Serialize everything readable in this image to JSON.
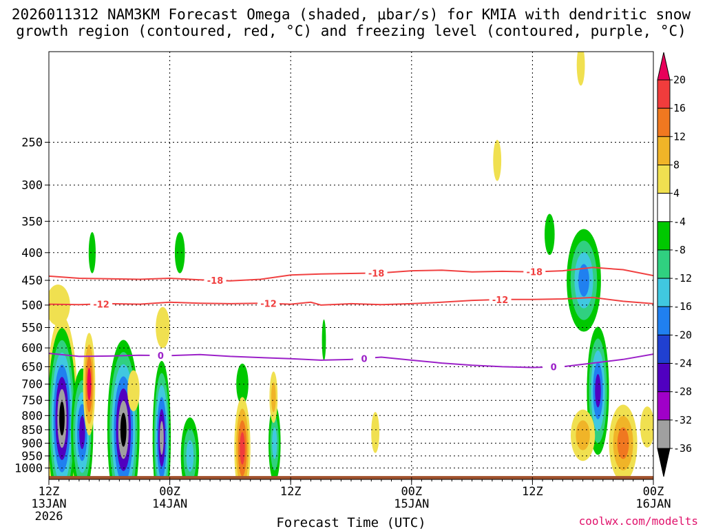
{
  "chart_data": {
    "type": "heatmap",
    "title_line1": "2026011312 NAM3KM Forecast Omega (shaded, μbar/s) for KMIA with dendritic snow",
    "title_line2": "growth region (contoured, red, °C) and freezing level (contoured, purple, °C)",
    "xlabel": "Forecast Time (UTC)",
    "credit": "coolwx.com/modelts",
    "x_range_hours": [
      0,
      60
    ],
    "y_range_hpa": [
      1050,
      170
    ],
    "y_ticks": [
      250,
      300,
      350,
      400,
      450,
      500,
      550,
      600,
      650,
      700,
      750,
      800,
      850,
      900,
      950,
      1000
    ],
    "x_ticks": [
      {
        "hour": 0,
        "line1": "12Z",
        "line2": "13JAN",
        "line3": "2026"
      },
      {
        "hour": 12,
        "line1": "00Z",
        "line2": "14JAN",
        "line3": ""
      },
      {
        "hour": 24,
        "line1": "12Z",
        "line2": "",
        "line3": ""
      },
      {
        "hour": 36,
        "line1": "00Z",
        "line2": "15JAN",
        "line3": ""
      },
      {
        "hour": 48,
        "line1": "12Z",
        "line2": "",
        "line3": ""
      },
      {
        "hour": 60,
        "line1": "00Z",
        "line2": "16JAN",
        "line3": ""
      }
    ],
    "colorbar": {
      "labels": [
        "20",
        "16",
        "12",
        "8",
        "4",
        "-4",
        "-8",
        "-12",
        "-16",
        "-20",
        "-24",
        "-28",
        "-32",
        "-36"
      ],
      "colors": [
        "#e8005a",
        "#f03c3c",
        "#f07820",
        "#f0b428",
        "#f0e050",
        "#ffffff",
        "#00c800",
        "#30d080",
        "#40c8e0",
        "#2080f0",
        "#2040d0",
        "#5000c0",
        "#a000c8",
        "#a0a0a0",
        "#000000"
      ]
    },
    "isotherms": [
      {
        "name": "-18",
        "color": "#f04040",
        "points": [
          [
            0,
            442
          ],
          [
            3,
            446
          ],
          [
            6,
            447
          ],
          [
            9,
            448
          ],
          [
            12,
            446
          ],
          [
            15,
            449
          ],
          [
            18,
            451
          ],
          [
            21,
            448
          ],
          [
            24,
            440
          ],
          [
            27,
            438
          ],
          [
            30,
            437
          ],
          [
            33,
            436
          ],
          [
            36,
            432
          ],
          [
            39,
            431
          ],
          [
            42,
            434
          ],
          [
            45,
            433
          ],
          [
            48,
            434
          ],
          [
            51,
            432
          ],
          [
            54,
            426
          ],
          [
            57,
            430
          ],
          [
            60,
            441
          ]
        ],
        "labels": [
          {
            "hour": 16.5,
            "text": "-18"
          },
          {
            "hour": 32.5,
            "text": "-18"
          },
          {
            "hour": 48.2,
            "text": "-18"
          }
        ]
      },
      {
        "name": "-12",
        "color": "#f04040",
        "points": [
          [
            0,
            498
          ],
          [
            3,
            499
          ],
          [
            6,
            497
          ],
          [
            9,
            498
          ],
          [
            12,
            494
          ],
          [
            15,
            496
          ],
          [
            18,
            497
          ],
          [
            21,
            496
          ],
          [
            24,
            498
          ],
          [
            26,
            494
          ],
          [
            27,
            500
          ],
          [
            30,
            497
          ],
          [
            33,
            499
          ],
          [
            36,
            497
          ],
          [
            39,
            494
          ],
          [
            42,
            490
          ],
          [
            45,
            488
          ],
          [
            48,
            488
          ],
          [
            51,
            487
          ],
          [
            54,
            484
          ],
          [
            57,
            492
          ],
          [
            60,
            497
          ]
        ],
        "labels": [
          {
            "hour": 5.2,
            "text": "-12"
          },
          {
            "hour": 21.8,
            "text": "-12"
          },
          {
            "hour": 44.8,
            "text": "-12"
          }
        ]
      },
      {
        "name": "0",
        "color": "#9b20c8",
        "points": [
          [
            0,
            614
          ],
          [
            3,
            622
          ],
          [
            6,
            621
          ],
          [
            9,
            619
          ],
          [
            12,
            620
          ],
          [
            15,
            617
          ],
          [
            18,
            622
          ],
          [
            21,
            625
          ],
          [
            24,
            628
          ],
          [
            27,
            632
          ],
          [
            30,
            630
          ],
          [
            33,
            624
          ],
          [
            36,
            632
          ],
          [
            39,
            640
          ],
          [
            42,
            646
          ],
          [
            45,
            650
          ],
          [
            48,
            652
          ],
          [
            51,
            650
          ],
          [
            54,
            640
          ],
          [
            57,
            630
          ],
          [
            60,
            616
          ]
        ],
        "labels": [
          {
            "hour": 11.1,
            "text": "0"
          },
          {
            "hour": 31.3,
            "text": "0"
          },
          {
            "hour": 50.1,
            "text": "0"
          }
        ]
      }
    ],
    "omega_blobs": [
      {
        "hour": 1.3,
        "hpa": 810,
        "w": 1.6,
        "levels": [
          "#f0e050",
          "#00c800",
          "#30d080",
          "#40c8e0",
          "#2080f0",
          "#5000c0",
          "#a0a0a0",
          "#000000"
        ]
      },
      {
        "hour": 0.9,
        "hpa": 500,
        "w": 1.2,
        "levels": [
          "#f0e050"
        ]
      },
      {
        "hour": 3.3,
        "hpa": 860,
        "w": 1.1,
        "levels": [
          "#00c800",
          "#30d080",
          "#40c8e0",
          "#2080f0",
          "#5000c0"
        ]
      },
      {
        "hour": 4.0,
        "hpa": 700,
        "w": 0.6,
        "levels": [
          "#f0e050",
          "#f0b428",
          "#f07820",
          "#e8005a"
        ]
      },
      {
        "hour": 4.3,
        "hpa": 400,
        "w": 0.35,
        "levels": [
          "#00c800"
        ]
      },
      {
        "hour": 7.4,
        "hpa": 850,
        "w": 1.6,
        "levels": [
          "#00c800",
          "#30d080",
          "#40c8e0",
          "#2080f0",
          "#5000c0",
          "#a0a0a0",
          "#000000"
        ]
      },
      {
        "hour": 8.4,
        "hpa": 720,
        "w": 0.6,
        "levels": [
          "#f0e050"
        ]
      },
      {
        "hour": 11.2,
        "hpa": 880,
        "w": 0.9,
        "levels": [
          "#00c800",
          "#30d080",
          "#40c8e0",
          "#2080f0",
          "#5000c0",
          "#a0a0a0"
        ]
      },
      {
        "hour": 11.3,
        "hpa": 550,
        "w": 0.7,
        "levels": [
          "#f0e050"
        ]
      },
      {
        "hour": 13.0,
        "hpa": 400,
        "w": 0.5,
        "levels": [
          "#00c800"
        ]
      },
      {
        "hour": 14.0,
        "hpa": 950,
        "w": 0.9,
        "levels": [
          "#00c800",
          "#30d080",
          "#40c8e0"
        ]
      },
      {
        "hour": 19.2,
        "hpa": 700,
        "w": 0.6,
        "levels": [
          "#00c800"
        ]
      },
      {
        "hour": 19.2,
        "hpa": 920,
        "w": 0.8,
        "levels": [
          "#f0e050",
          "#f0b428",
          "#f07820",
          "#f03c3c"
        ]
      },
      {
        "hour": 22.4,
        "hpa": 900,
        "w": 0.6,
        "levels": [
          "#00c800",
          "#30d080",
          "#40c8e0"
        ]
      },
      {
        "hour": 22.3,
        "hpa": 740,
        "w": 0.4,
        "levels": [
          "#f0e050",
          "#f0b428"
        ]
      },
      {
        "hour": 27.3,
        "hpa": 580,
        "w": 0.2,
        "levels": [
          "#00c800"
        ]
      },
      {
        "hour": 32.4,
        "hpa": 860,
        "w": 0.4,
        "levels": [
          "#f0e050"
        ]
      },
      {
        "hour": 44.5,
        "hpa": 270,
        "w": 0.4,
        "levels": [
          "#f0e050"
        ]
      },
      {
        "hour": 49.7,
        "hpa": 370,
        "w": 0.5,
        "levels": [
          "#00c800"
        ]
      },
      {
        "hour": 53.1,
        "hpa": 450,
        "w": 1.7,
        "levels": [
          "#00c800",
          "#30d080",
          "#40c8e0",
          "#2080f0"
        ]
      },
      {
        "hour": 54.5,
        "hpa": 720,
        "w": 1.1,
        "levels": [
          "#00c800",
          "#30d080",
          "#40c8e0",
          "#2080f0",
          "#5000c0"
        ]
      },
      {
        "hour": 53.0,
        "hpa": 870,
        "w": 1.2,
        "levels": [
          "#f0e050",
          "#f0b428"
        ]
      },
      {
        "hour": 57.0,
        "hpa": 900,
        "w": 1.4,
        "levels": [
          "#f0e050",
          "#f0b428",
          "#f07820"
        ]
      },
      {
        "hour": 59.4,
        "hpa": 840,
        "w": 0.7,
        "levels": [
          "#f0e050"
        ]
      },
      {
        "hour": 52.8,
        "hpa": 180,
        "w": 0.4,
        "levels": [
          "#f0e050"
        ]
      }
    ],
    "surface_color": "#a0522d",
    "isotherm_legend": {
      "snow_growth": "red",
      "freezing": "purple"
    }
  }
}
